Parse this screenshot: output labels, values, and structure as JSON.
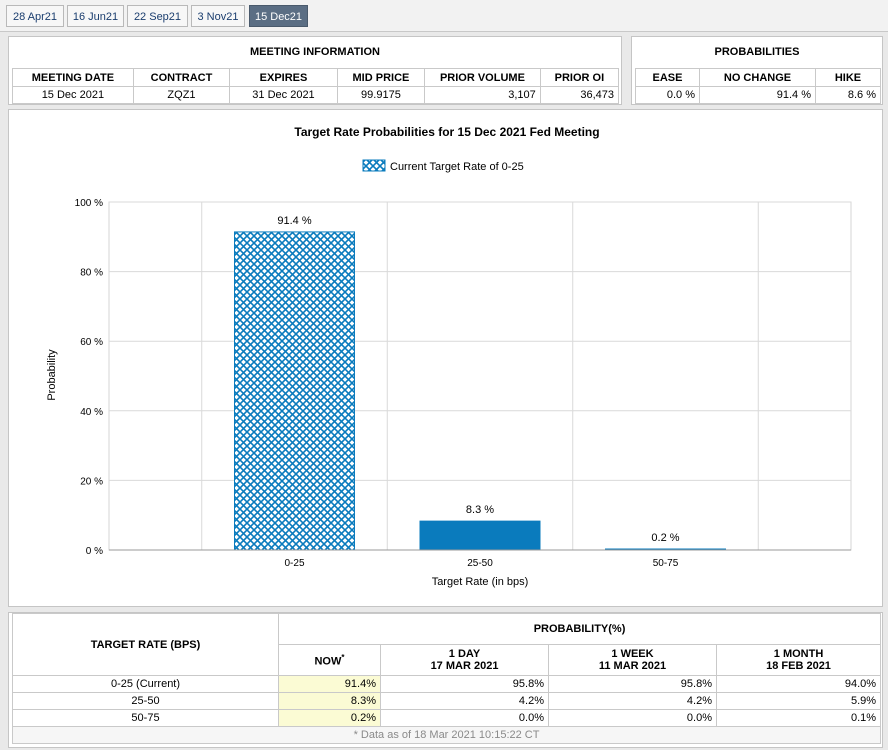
{
  "tabs": [
    {
      "label": "28 Apr21",
      "active": false
    },
    {
      "label": "16 Jun21",
      "active": false
    },
    {
      "label": "22 Sep21",
      "active": false
    },
    {
      "label": "3 Nov21",
      "active": false
    },
    {
      "label": "15 Dec21",
      "active": true
    }
  ],
  "meeting_info": {
    "title": "MEETING INFORMATION",
    "headers": [
      "MEETING DATE",
      "CONTRACT",
      "EXPIRES",
      "MID PRICE",
      "PRIOR VOLUME",
      "PRIOR OI"
    ],
    "values": [
      "15 Dec 2021",
      "ZQZ1",
      "31 Dec 2021",
      "99.9175",
      "3,107",
      "36,473"
    ]
  },
  "probabilities": {
    "title": "PROBABILITIES",
    "headers": [
      "EASE",
      "NO CHANGE",
      "HIKE"
    ],
    "values": [
      "0.0 %",
      "91.4 %",
      "8.6 %"
    ]
  },
  "chart_data": {
    "type": "bar",
    "title": "Target Rate Probabilities for 15 Dec 2021 Fed Meeting",
    "legend": "Current Target Rate of 0-25",
    "categories": [
      "0-25",
      "25-50",
      "50-75"
    ],
    "values": [
      91.4,
      8.3,
      0.2
    ],
    "value_labels": [
      "91.4 %",
      "8.3 %",
      "0.2 %"
    ],
    "ylim": [
      0,
      100
    ],
    "yticks": [
      0,
      20,
      40,
      60,
      80,
      100
    ],
    "ytick_labels": [
      "0 %",
      "20 %",
      "40 %",
      "60 %",
      "80 %",
      "100 %"
    ],
    "xlabel": "Target Rate (in bps)",
    "ylabel": "Probability",
    "current_category_index": 0,
    "colors": {
      "bar": "#0a7bbd",
      "hatch": "#0a7bbd"
    }
  },
  "prob_table": {
    "rate_header": "TARGET RATE (BPS)",
    "prob_header": "PROBABILITY(%)",
    "now_label": "NOW",
    "now_mark": "*",
    "columns": [
      {
        "line1": "1 DAY",
        "line2": "17 MAR 2021"
      },
      {
        "line1": "1 WEEK",
        "line2": "11 MAR 2021"
      },
      {
        "line1": "1 MONTH",
        "line2": "18 FEB 2021"
      }
    ],
    "rows": [
      {
        "rate": "0-25 (Current)",
        "now": "91.4%",
        "day": "95.8%",
        "week": "95.8%",
        "month": "94.0%"
      },
      {
        "rate": "25-50",
        "now": "8.3%",
        "day": "4.2%",
        "week": "4.2%",
        "month": "5.9%"
      },
      {
        "rate": "50-75",
        "now": "0.2%",
        "day": "0.0%",
        "week": "0.0%",
        "month": "0.1%"
      }
    ],
    "footnote": "* Data as of 18 Mar 2021 10:15:22 CT"
  }
}
